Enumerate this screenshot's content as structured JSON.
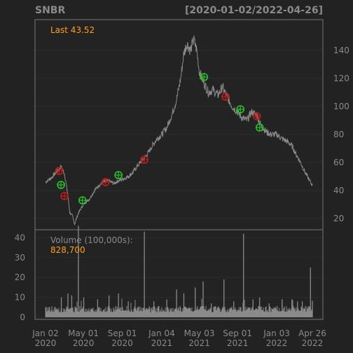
{
  "header": {
    "symbol": "SNBR",
    "date_range": "[2020-01-02/2022-04-26]"
  },
  "price_panel": {
    "last_label": "Last 43.52",
    "y_ticks": [
      20,
      40,
      60,
      80,
      100,
      120,
      140
    ]
  },
  "volume_panel": {
    "label": "Volume (100,000s):",
    "last_value": "828,700",
    "y_ticks": [
      0,
      10,
      20,
      30,
      40
    ]
  },
  "x_axis": {
    "ticks": [
      {
        "line1": "Jan 02",
        "line2": "2020",
        "date": "2020-01-02"
      },
      {
        "line1": "May 01",
        "line2": "2020",
        "date": "2020-05-01"
      },
      {
        "line1": "Sep 01",
        "line2": "2020",
        "date": "2020-09-01"
      },
      {
        "line1": "Jan 04",
        "line2": "2021",
        "date": "2021-01-04"
      },
      {
        "line1": "May 03",
        "line2": "2021",
        "date": "2021-05-03"
      },
      {
        "line1": "Sep 01",
        "line2": "2021",
        "date": "2021-09-01"
      },
      {
        "line1": "Jan 03",
        "line2": "2022",
        "date": "2022-01-03"
      },
      {
        "line1": "Apr 26",
        "line2": "2022",
        "date": "2022-04-26"
      }
    ]
  },
  "colors": {
    "background": "#222222",
    "panel": "#232323",
    "grid": "#2c2c2c",
    "frame": "#777777",
    "price_line": "#8a8a8a",
    "volume_bars": "#8a8a8a",
    "axis_text": "#8a8a8a",
    "highlight_text": "#ff9f1a",
    "buy_marker": "#27c427",
    "sell_marker": "#c01d1d"
  },
  "chart_data": {
    "type": "line",
    "title": "SNBR",
    "date_range": [
      "2020-01-02",
      "2022-04-26"
    ],
    "price": {
      "series": [
        {
          "name": "SNBR",
          "points": [
            [
              "2020-01-02",
              46
            ],
            [
              "2020-01-20",
              49
            ],
            [
              "2020-02-05",
              53
            ],
            [
              "2020-02-20",
              57
            ],
            [
              "2020-03-02",
              52
            ],
            [
              "2020-03-12",
              38
            ],
            [
              "2020-03-19",
              24
            ],
            [
              "2020-03-27",
              22
            ],
            [
              "2020-04-03",
              16
            ],
            [
              "2020-04-15",
              24
            ],
            [
              "2020-05-01",
              30
            ],
            [
              "2020-05-20",
              34
            ],
            [
              "2020-06-05",
              40
            ],
            [
              "2020-06-20",
              44
            ],
            [
              "2020-07-05",
              46
            ],
            [
              "2020-07-20",
              47
            ],
            [
              "2020-08-05",
              45
            ],
            [
              "2020-08-20",
              47
            ],
            [
              "2020-09-01",
              48
            ],
            [
              "2020-09-20",
              50
            ],
            [
              "2020-10-05",
              53
            ],
            [
              "2020-10-20",
              58
            ],
            [
              "2020-11-05",
              62
            ],
            [
              "2020-11-20",
              66
            ],
            [
              "2020-12-05",
              72
            ],
            [
              "2020-12-20",
              77
            ],
            [
              "2021-01-04",
              80
            ],
            [
              "2021-01-20",
              85
            ],
            [
              "2021-02-05",
              94
            ],
            [
              "2021-02-20",
              105
            ],
            [
              "2021-03-05",
              120
            ],
            [
              "2021-03-15",
              138
            ],
            [
              "2021-03-25",
              145
            ],
            [
              "2021-04-05",
              140
            ],
            [
              "2021-04-15",
              148
            ],
            [
              "2021-04-25",
              140
            ],
            [
              "2021-05-03",
              125
            ],
            [
              "2021-05-15",
              118
            ],
            [
              "2021-06-01",
              110
            ],
            [
              "2021-06-15",
              112
            ],
            [
              "2021-07-01",
              108
            ],
            [
              "2021-07-15",
              114
            ],
            [
              "2021-08-01",
              106
            ],
            [
              "2021-08-15",
              100
            ],
            [
              "2021-09-01",
              96
            ],
            [
              "2021-09-15",
              92
            ],
            [
              "2021-10-01",
              90
            ],
            [
              "2021-10-15",
              96
            ],
            [
              "2021-11-01",
              94
            ],
            [
              "2021-11-15",
              86
            ],
            [
              "2021-12-01",
              82
            ],
            [
              "2021-12-15",
              80
            ],
            [
              "2022-01-03",
              80
            ],
            [
              "2022-01-20",
              77
            ],
            [
              "2022-02-05",
              75
            ],
            [
              "2022-02-20",
              72
            ],
            [
              "2022-03-05",
              66
            ],
            [
              "2022-03-20",
              60
            ],
            [
              "2022-04-05",
              52
            ],
            [
              "2022-04-15",
              48
            ],
            [
              "2022-04-26",
              43.52
            ]
          ]
        }
      ],
      "ylim": [
        12,
        162
      ]
    },
    "signals": [
      {
        "date": "2020-02-14",
        "price": 54,
        "type": "sell"
      },
      {
        "date": "2020-02-20",
        "price": 44,
        "type": "buy"
      },
      {
        "date": "2020-03-02",
        "price": 36,
        "type": "sell"
      },
      {
        "date": "2020-04-28",
        "price": 33,
        "type": "buy"
      },
      {
        "date": "2020-07-10",
        "price": 46,
        "type": "sell"
      },
      {
        "date": "2020-08-20",
        "price": 51,
        "type": "buy"
      },
      {
        "date": "2020-11-10",
        "price": 62,
        "type": "sell"
      },
      {
        "date": "2021-05-18",
        "price": 121,
        "type": "buy"
      },
      {
        "date": "2021-07-25",
        "price": 107,
        "type": "sell"
      },
      {
        "date": "2021-09-10",
        "price": 98,
        "type": "buy"
      },
      {
        "date": "2021-11-01",
        "price": 93,
        "type": "sell"
      },
      {
        "date": "2021-11-10",
        "price": 85,
        "type": "buy"
      }
    ],
    "volume": {
      "unit": "100,000s",
      "ylim": [
        0,
        44
      ],
      "baseline": 2.5,
      "spikes": [
        [
          "2020-02-21",
          10
        ],
        [
          "2020-03-13",
          12
        ],
        [
          "2020-03-25",
          11
        ],
        [
          "2020-04-15",
          46
        ],
        [
          "2020-05-02",
          10
        ],
        [
          "2020-06-15",
          9
        ],
        [
          "2020-07-21",
          11
        ],
        [
          "2020-08-20",
          12
        ],
        [
          "2020-09-20",
          8
        ],
        [
          "2020-11-10",
          43
        ],
        [
          "2020-12-10",
          8
        ],
        [
          "2021-01-20",
          9
        ],
        [
          "2021-02-20",
          14
        ],
        [
          "2021-03-15",
          12
        ],
        [
          "2021-04-20",
          15
        ],
        [
          "2021-05-15",
          18
        ],
        [
          "2021-06-10",
          7
        ],
        [
          "2021-07-20",
          19
        ],
        [
          "2021-08-20",
          8
        ],
        [
          "2021-09-20",
          42
        ],
        [
          "2021-10-20",
          9
        ],
        [
          "2021-11-10",
          10
        ],
        [
          "2021-12-10",
          7
        ],
        [
          "2022-01-20",
          9
        ],
        [
          "2022-02-20",
          9
        ],
        [
          "2022-03-10",
          8
        ],
        [
          "2022-03-25",
          8
        ],
        [
          "2022-04-20",
          25
        ],
        [
          "2022-04-26",
          8.287
        ]
      ]
    }
  }
}
